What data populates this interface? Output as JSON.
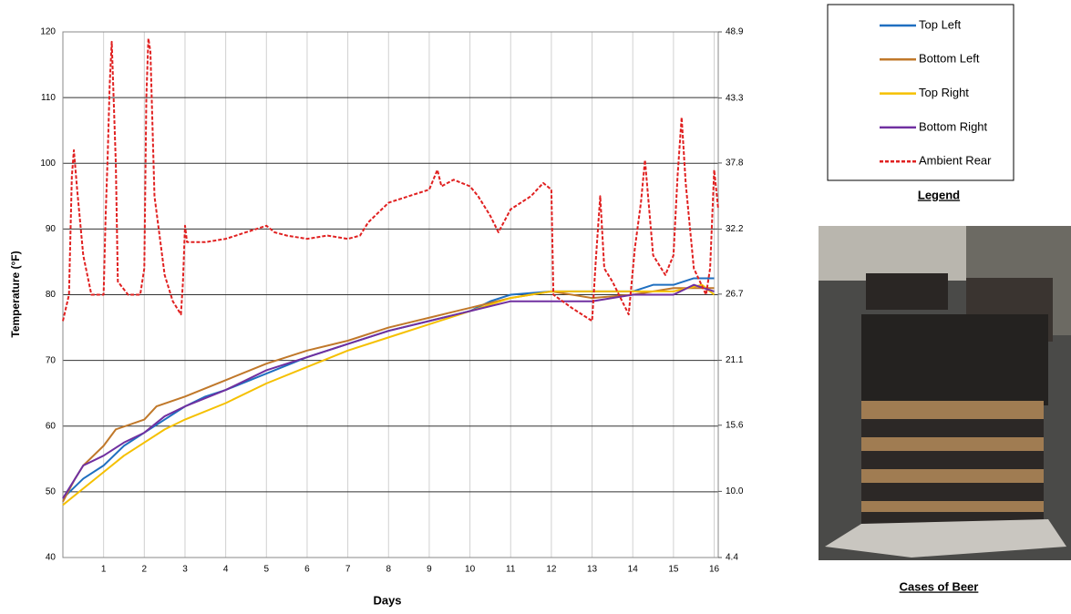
{
  "chart_data": {
    "type": "line",
    "x_label": "Days",
    "y_label": "Temperature (°F)",
    "xlim": [
      0,
      16.1
    ],
    "xticks": [
      1,
      2,
      3,
      4,
      5,
      6,
      7,
      8,
      9,
      10,
      11,
      12,
      13,
      14,
      15,
      16
    ],
    "ylim": [
      40,
      120
    ],
    "yticks": [
      40,
      50,
      60,
      70,
      80,
      90,
      100,
      110,
      120
    ],
    "y2lim": [
      4.4,
      48.9
    ],
    "y2ticks": [
      4.4,
      {
        "value": 10,
        "label": "10.0"
      },
      15.6,
      21.1,
      26.7,
      32.2,
      37.8,
      43.3,
      48.9
    ],
    "grid": true,
    "legend_title": "Legend",
    "series": [
      {
        "name": "Top Left",
        "color": "#1f6fc0",
        "style": "solid",
        "x": [
          0,
          0.5,
          1,
          1.5,
          2,
          2.5,
          3,
          3.5,
          4,
          5,
          6,
          7,
          8,
          9,
          10,
          10.5,
          11,
          12,
          13,
          14,
          14.5,
          15,
          15.5,
          16
        ],
        "values": [
          49,
          52,
          54,
          57,
          59,
          61,
          63,
          64.5,
          65.5,
          68,
          70.5,
          72.5,
          74.5,
          76,
          77.5,
          79,
          80,
          80.5,
          80.5,
          80.5,
          81.5,
          81.5,
          82.5,
          82.5
        ]
      },
      {
        "name": "Bottom Left",
        "color": "#c0782a",
        "style": "solid",
        "x": [
          0,
          0.3,
          0.5,
          1,
          1.3,
          2,
          2.3,
          3,
          4,
          5,
          6,
          7,
          8,
          9,
          10,
          11,
          12,
          13,
          14,
          15,
          16
        ],
        "values": [
          48.5,
          52,
          54,
          57,
          59.5,
          61,
          63,
          64.5,
          67,
          69.5,
          71.5,
          73,
          75,
          76.5,
          78,
          79.5,
          80.5,
          79.5,
          80,
          81,
          81
        ]
      },
      {
        "name": "Top Right",
        "color": "#f5c000",
        "style": "solid",
        "x": [
          0,
          0.5,
          1,
          1.5,
          2,
          2.5,
          3,
          4,
          5,
          6,
          7,
          8,
          9,
          10,
          11,
          12,
          13,
          14,
          15,
          15.7,
          16
        ],
        "values": [
          48,
          50.5,
          53,
          55.5,
          57.5,
          59.5,
          61,
          63.5,
          66.5,
          69,
          71.5,
          73.5,
          75.5,
          77.5,
          79.5,
          80.5,
          80.5,
          80.5,
          80.5,
          81.5,
          80
        ]
      },
      {
        "name": "Bottom Right",
        "color": "#7030a0",
        "style": "solid",
        "x": [
          0,
          0.3,
          0.5,
          1,
          1.5,
          2,
          2.5,
          3,
          4,
          5,
          6,
          7,
          8,
          9,
          10,
          11,
          12,
          13,
          14,
          15,
          15.5,
          16
        ],
        "values": [
          49,
          52,
          54,
          55.5,
          57.5,
          59,
          61.5,
          63,
          65.5,
          68.5,
          70.5,
          72.5,
          74.5,
          76,
          77.5,
          79,
          79,
          79,
          80,
          80,
          81.5,
          80.5
        ]
      },
      {
        "name": "Ambient Rear",
        "color": "#e02020",
        "style": "dashed",
        "x": [
          0,
          0.15,
          0.22,
          0.27,
          0.35,
          0.5,
          0.7,
          1,
          1.05,
          1.1,
          1.15,
          1.2,
          1.3,
          1.35,
          1.6,
          1.9,
          2,
          2.05,
          2.1,
          2.15,
          2.25,
          2.5,
          2.7,
          2.9,
          2.95,
          3,
          3.05,
          3.5,
          4,
          4.5,
          5,
          5.2,
          5.5,
          6,
          6.5,
          7,
          7.3,
          7.5,
          8,
          8.5,
          9,
          9.2,
          9.3,
          9.6,
          10,
          10.2,
          10.5,
          10.7,
          11,
          11.5,
          11.8,
          12,
          12.05,
          12.5,
          13,
          13.1,
          13.2,
          13.3,
          13.5,
          13.9,
          14.05,
          14.2,
          14.3,
          14.5,
          14.8,
          15,
          15.1,
          15.2,
          15.3,
          15.5,
          15.8,
          15.9,
          16,
          16.1
        ],
        "values": [
          76,
          80,
          98,
          102,
          96,
          86,
          80,
          80,
          92,
          101,
          112,
          118.5,
          100,
          82,
          80,
          80,
          84,
          110,
          119,
          117,
          95,
          83,
          79,
          77,
          82,
          90.5,
          88,
          88,
          88.5,
          89.5,
          90.5,
          89.5,
          89,
          88.5,
          89,
          88.5,
          89,
          91,
          94,
          95,
          96,
          99,
          96.5,
          97.5,
          96.5,
          95,
          92,
          89.5,
          93,
          95,
          97,
          96,
          80,
          78,
          76,
          86,
          95,
          84,
          82,
          77,
          87,
          94,
          100.5,
          86,
          83,
          86,
          98,
          107,
          97,
          84,
          80,
          84,
          99,
          93
        ]
      }
    ]
  },
  "photo_caption": "Cases of Beer"
}
